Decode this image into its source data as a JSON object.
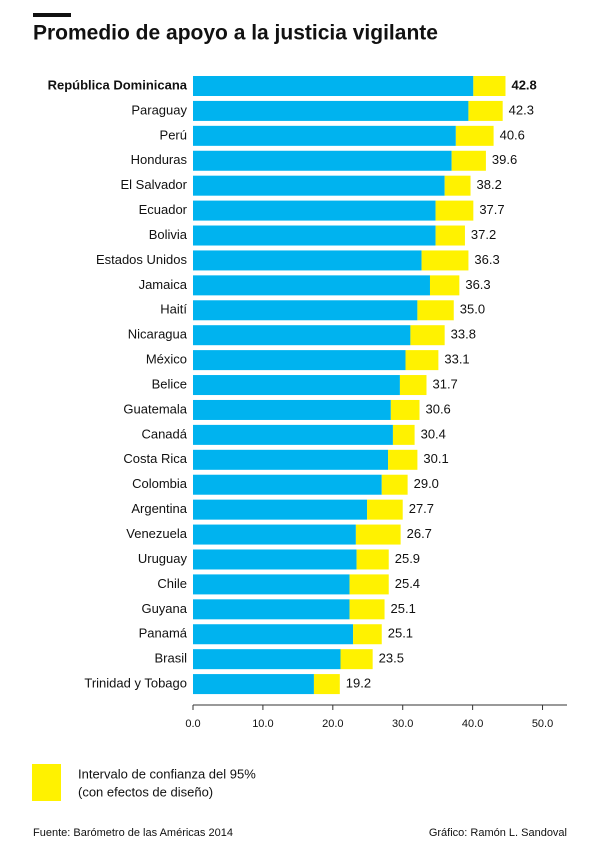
{
  "chart_data": {
    "type": "interval-bar",
    "title": "Promedio de apoyo a la justicia vigilante",
    "categories": [
      "República Dominicana",
      "Paraguay",
      "Perú",
      "Honduras",
      "El Salvador",
      "Ecuador",
      "Bolivia",
      "Estados Unidos",
      "Jamaica",
      "Haití",
      "Nicaragua",
      "México",
      "Belice",
      "Guatemala",
      "Canadá",
      "Costa Rica",
      "Colombia",
      "Argentina",
      "Venezuela",
      "Uruguay",
      "Chile",
      "Guyana",
      "Panamá",
      "Brasil",
      "Trinidad y Tobago"
    ],
    "values": [
      42.8,
      42.3,
      40.6,
      39.6,
      38.2,
      37.7,
      37.2,
      36.3,
      36.3,
      35.0,
      33.8,
      33.1,
      31.7,
      30.6,
      30.4,
      30.1,
      29.0,
      27.7,
      26.7,
      25.9,
      25.4,
      25.1,
      25.1,
      23.5,
      19.2
    ],
    "value_labels": [
      "42.8",
      "42.3",
      "40.6",
      "39.6",
      "38.2",
      "37.7",
      "37.2",
      "36.3",
      "36.3",
      "35.0",
      "33.8",
      "33.1",
      "31.7",
      "30.6",
      "30.4",
      "30.1",
      "29.0",
      "27.7",
      "26.7",
      "25.9",
      "25.4",
      "25.1",
      "25.1",
      "23.5",
      "19.2"
    ],
    "lower": [
      40.1,
      39.4,
      37.6,
      37.0,
      36.0,
      34.7,
      34.7,
      32.7,
      33.9,
      32.1,
      31.1,
      30.4,
      29.6,
      28.3,
      28.6,
      27.9,
      27.0,
      24.9,
      23.3,
      23.4,
      22.4,
      22.4,
      22.9,
      21.1,
      17.3
    ],
    "upper": [
      44.7,
      44.3,
      43.0,
      41.9,
      39.7,
      40.1,
      38.9,
      39.4,
      38.1,
      37.3,
      36.0,
      35.1,
      33.4,
      32.4,
      31.7,
      32.1,
      30.7,
      30.0,
      29.7,
      28.0,
      28.0,
      27.4,
      27.0,
      25.7,
      21.0
    ],
    "bar_color": "#00b3ef",
    "interval_color": "#fff200",
    "xlim": [
      0,
      53.5
    ],
    "xticks": [
      {
        "value": 0,
        "label": "0.0"
      },
      {
        "value": 10,
        "label": "10.0"
      },
      {
        "value": 20,
        "label": "20.0"
      },
      {
        "value": 30,
        "label": "30.0"
      },
      {
        "value": 40,
        "label": "40.0"
      },
      {
        "value": 50,
        "label": "50.0"
      }
    ],
    "legend": [
      "Intervalo de confianza del 95%",
      "(con efectos de diseño)"
    ],
    "source": "Fuente: Barómetro de las Américas 2014",
    "credit": "Gráfico: Ramón L. Sandoval"
  }
}
